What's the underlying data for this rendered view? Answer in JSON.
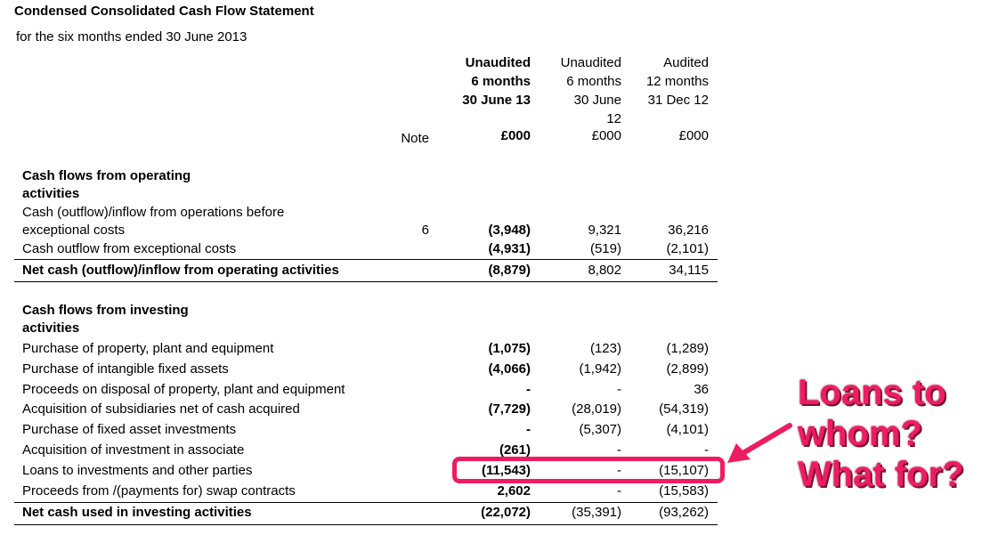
{
  "statement": {
    "title": "Condensed Consolidated Cash Flow Statement",
    "period": "for the six months ended 30 June 2013"
  },
  "columns": {
    "note_label": "Note",
    "col1": {
      "line1": "Unaudited",
      "line2": "6 months",
      "line3": "30 June 13",
      "line4": "",
      "unit": "£000"
    },
    "col2": {
      "line1": "Unaudited",
      "line2": "6 months",
      "line3": "30 June",
      "line4": "12",
      "unit": "£000"
    },
    "col3": {
      "line1": "Audited",
      "line2": "12 months",
      "line3": "31 Dec 12",
      "line4": "",
      "unit": "£000"
    }
  },
  "operating": {
    "heading1": "Cash flows from operating",
    "heading2": "activities",
    "rows": [
      {
        "label": "Cash (outflow)/inflow from operations before",
        "label2": "exceptional costs",
        "note": "6",
        "c1": "(3,948)",
        "c2": "9,321",
        "c3": "36,216"
      },
      {
        "label": "Cash outflow from exceptional costs",
        "note": "",
        "c1": "(4,931)",
        "c2": "(519)",
        "c3": "(2,101)"
      }
    ],
    "total": {
      "label": "Net cash (outflow)/inflow from operating activities",
      "c1": "(8,879)",
      "c2": "8,802",
      "c3": "34,115"
    }
  },
  "investing": {
    "heading1": "Cash flows from investing",
    "heading2": "activities",
    "rows": [
      {
        "label": "Purchase of property, plant and equipment",
        "c1": "(1,075)",
        "c2": "(123)",
        "c3": "(1,289)"
      },
      {
        "label": "Purchase of intangible fixed assets",
        "c1": "(4,066)",
        "c2": "(1,942)",
        "c3": "(2,899)"
      },
      {
        "label": "Proceeds on disposal of property, plant and equipment",
        "c1": "-",
        "c2": "-",
        "c3": "36"
      },
      {
        "label": "Acquisition of subsidiaries net of cash acquired",
        "c1": "(7,729)",
        "c2": "(28,019)",
        "c3": "(54,319)"
      },
      {
        "label": "Purchase of fixed asset investments",
        "c1": "-",
        "c2": "(5,307)",
        "c3": "(4,101)"
      },
      {
        "label": "Acquisition of investment in associate",
        "c1": "(261)",
        "c2": "-",
        "c3": "-"
      },
      {
        "label": "Loans to investments and other parties",
        "c1": "(11,543)",
        "c2": "-",
        "c3": "(15,107)"
      },
      {
        "label": "Proceeds from /(payments for) swap contracts",
        "c1": "2,602",
        "c2": "-",
        "c3": "(15,583)"
      }
    ],
    "total": {
      "label": "Net cash used in investing activities",
      "c1": "(22,072)",
      "c2": "(35,391)",
      "c3": "(93,262)"
    }
  },
  "annotation": {
    "line1": "Loans to",
    "line2": "whom?",
    "line3": "What for?",
    "color": "#ee1c60"
  }
}
